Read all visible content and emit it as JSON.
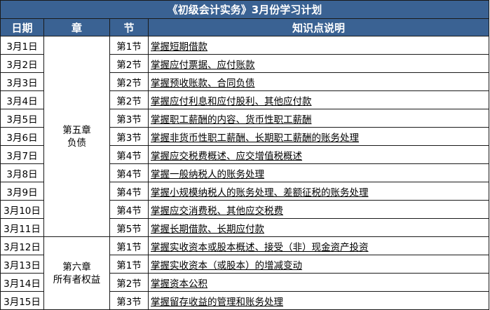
{
  "title": "《初级会计实务》3月份学习计划",
  "headers": [
    "日期",
    "章",
    "节",
    "知识点说明"
  ],
  "chapters": [
    {
      "line1": "第五章",
      "line2": "负债",
      "rows": 11
    },
    {
      "line1": "第六章",
      "line2": "所有者权益",
      "rows": 4
    }
  ],
  "rows": [
    {
      "date": "3月1日",
      "section": "第1节",
      "topic": "掌握短期借款"
    },
    {
      "date": "3月2日",
      "section": "第2节",
      "topic": "掌握应付票据、应付账款"
    },
    {
      "date": "3月3日",
      "section": "第2节",
      "topic": "掌握预收账款、合同负债"
    },
    {
      "date": "3月4日",
      "section": "第2节",
      "topic": "掌握应付利息和应付股利、其他应付款"
    },
    {
      "date": "3月5日",
      "section": "第3节",
      "topic": "掌握职工薪酬的内容、货币性职工薪酬"
    },
    {
      "date": "3月6日",
      "section": "第3节",
      "topic": "掌握非货币性职工薪酬、长期职工薪酬的账务处理"
    },
    {
      "date": "3月7日",
      "section": "第4节",
      "topic": "掌握应交税费概述、应交增值税概述"
    },
    {
      "date": "3月8日",
      "section": "第4节",
      "topic": "掌握一般纳税人的账务处理"
    },
    {
      "date": "3月9日",
      "section": "第4节",
      "topic": "掌握小规模纳税人的账务处理、差额征税的账务处理"
    },
    {
      "date": "3月10日",
      "section": "第4节",
      "topic": "掌握应交消费税、其他应交税费"
    },
    {
      "date": "3月11日",
      "section": "第5节",
      "topic": "掌握长期借款、长期应付款"
    },
    {
      "date": "3月12日",
      "section": "第1节",
      "topic": "掌握实收资本或股本概述、接受（非）现金资产投资"
    },
    {
      "date": "3月13日",
      "section": "第1节",
      "topic": "掌握实收资本（或股本）的增减变动"
    },
    {
      "date": "3月14日",
      "section": "第2节",
      "topic": "掌握资本公积"
    },
    {
      "date": "3月15日",
      "section": "第3节",
      "topic": "掌握留存收益的管理和账务处理"
    }
  ],
  "colors": {
    "header_bg": "#3a6293",
    "header_text": "#ffffff"
  }
}
